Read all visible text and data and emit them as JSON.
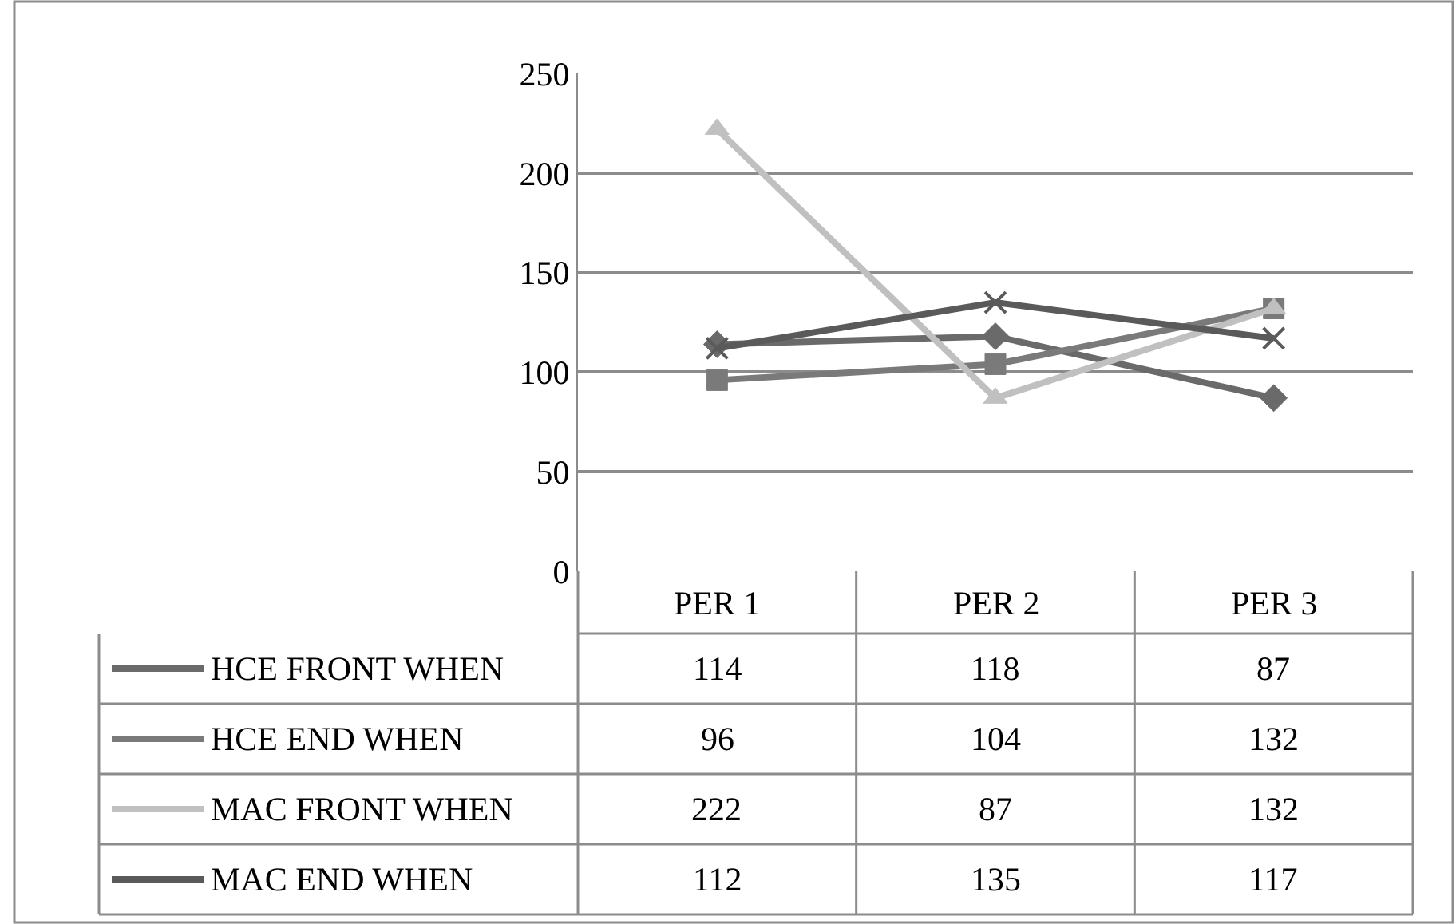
{
  "chart_data": {
    "type": "line",
    "categories": [
      "PER 1",
      "PER 2",
      "PER 3"
    ],
    "series": [
      {
        "name": "HCE FRONT WHEN",
        "color": "#6a6a6a",
        "marker": "diamond",
        "values": [
          114,
          118,
          87
        ]
      },
      {
        "name": "HCE END WHEN",
        "color": "#7a7a7a",
        "marker": "square",
        "values": [
          96,
          104,
          132
        ]
      },
      {
        "name": "MAC FRONT WHEN",
        "color": "#c0c0c0",
        "marker": "triangle",
        "values": [
          222,
          87,
          132
        ]
      },
      {
        "name": "MAC END WHEN",
        "color": "#5a5a5a",
        "marker": "cross",
        "values": [
          112,
          135,
          117
        ]
      }
    ],
    "ylim": [
      0,
      250
    ],
    "yticks": [
      0,
      50,
      100,
      150,
      200,
      250
    ],
    "grid": "y",
    "legend": "bottom",
    "data_labels": true
  }
}
